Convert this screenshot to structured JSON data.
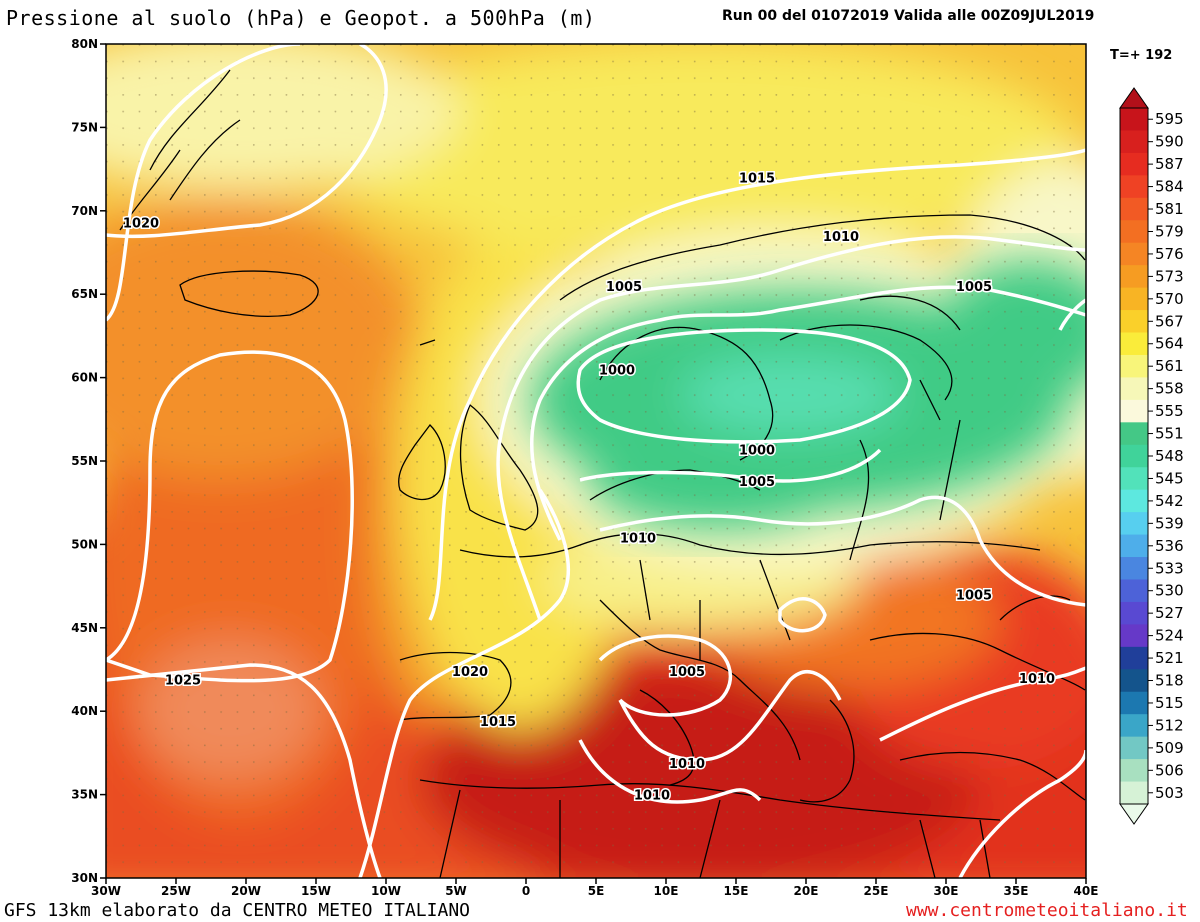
{
  "header": {
    "title": "Pressione al suolo (hPa) e Geopot. a 500hPa (m)",
    "run_info": "Run 00 del 01072019  Valida alle 00Z09JUL2019",
    "timestep": "T=+ 192"
  },
  "footer": {
    "credit": "GFS 13km elaborato da CENTRO METEO ITALIANO",
    "website": "www.centrometeoitaliano.it"
  },
  "axes": {
    "lat_labels": [
      "80N",
      "75N",
      "70N",
      "65N",
      "60N",
      "55N",
      "50N",
      "45N",
      "40N",
      "35N",
      "30N"
    ],
    "lon_labels": [
      "30W",
      "25W",
      "20W",
      "15W",
      "10W",
      "5W",
      "0",
      "5E",
      "10E",
      "15E",
      "20E",
      "25E",
      "30E",
      "35E",
      "40E"
    ],
    "lat_range": [
      30,
      80
    ],
    "lon_range": [
      -30,
      40
    ]
  },
  "colorbar": {
    "values": [
      "595",
      "590",
      "587",
      "584",
      "581",
      "579",
      "576",
      "573",
      "570",
      "567",
      "564",
      "561",
      "558",
      "555",
      "551",
      "548",
      "545",
      "542",
      "539",
      "536",
      "533",
      "530",
      "527",
      "524",
      "521",
      "518",
      "515",
      "512",
      "509",
      "506",
      "503"
    ],
    "colors": [
      "#c8141b",
      "#d8201e",
      "#e62c20",
      "#ef4224",
      "#f25a24",
      "#f36f22",
      "#f58524",
      "#f69c22",
      "#f8b424",
      "#fad02a",
      "#faec3a",
      "#f8f57a",
      "#f6f7b8",
      "#fbf9dc",
      "#44c886",
      "#40d39a",
      "#52e2ba",
      "#5de8df",
      "#57cfef",
      "#4eaeea",
      "#4a86e0",
      "#4d62d8",
      "#5949d2",
      "#6639c8",
      "#203f9a",
      "#14548c",
      "#1c78b0",
      "#3aa6c8",
      "#72c8c4",
      "#a8e0c0",
      "#d6f2d6"
    ]
  },
  "isobars": [
    {
      "label": "1020",
      "lon": -27.5,
      "lat": 69.3
    },
    {
      "label": "1015",
      "lon": 16.5,
      "lat": 72.0
    },
    {
      "label": "1010",
      "lon": 22.5,
      "lat": 68.5
    },
    {
      "label": "1005",
      "lon": 7.0,
      "lat": 65.5
    },
    {
      "label": "1005",
      "lon": 32.0,
      "lat": 65.5
    },
    {
      "label": "1000",
      "lon": 6.5,
      "lat": 60.5
    },
    {
      "label": "1000",
      "lon": 16.5,
      "lat": 55.7
    },
    {
      "label": "1005",
      "lon": 16.5,
      "lat": 53.8
    },
    {
      "label": "1010",
      "lon": 8.0,
      "lat": 50.4
    },
    {
      "label": "1005",
      "lon": 32.0,
      "lat": 47.0
    },
    {
      "label": "1025",
      "lon": -24.5,
      "lat": 41.9
    },
    {
      "label": "1020",
      "lon": -4.0,
      "lat": 42.4
    },
    {
      "label": "1015",
      "lon": -2.0,
      "lat": 39.4
    },
    {
      "label": "1005",
      "lon": 11.5,
      "lat": 42.4
    },
    {
      "label": "1010",
      "lon": 36.5,
      "lat": 42.0
    },
    {
      "label": "1010",
      "lon": 11.5,
      "lat": 36.9
    },
    {
      "label": "1010",
      "lon": 9.0,
      "lat": 35.0
    }
  ]
}
